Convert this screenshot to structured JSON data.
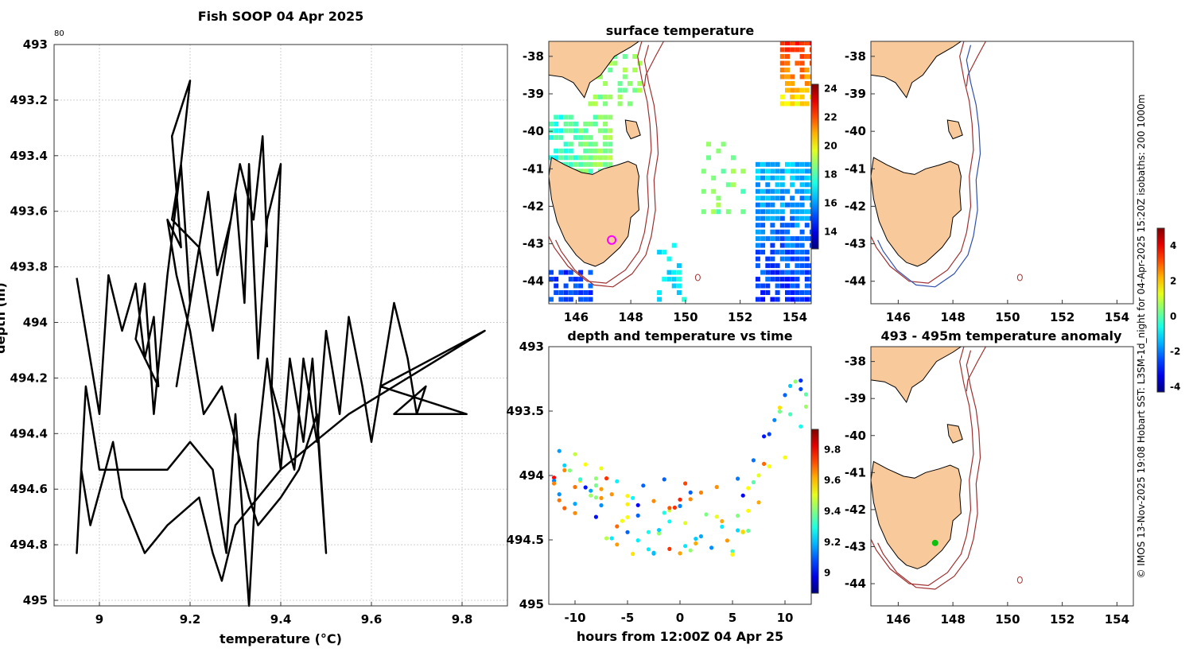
{
  "chart_data": [
    {
      "id": "profile",
      "type": "line",
      "title": "Fish SOOP 04 Apr 2025",
      "top_label": "80",
      "xlabel": "temperature (°C)",
      "ylabel": "depth (m)",
      "xlim": [
        8.9,
        9.9
      ],
      "ylim": [
        493,
        495.02
      ],
      "xticks": [
        9,
        9.2,
        9.4,
        9.6,
        9.8
      ],
      "yticks": [
        493,
        493.2,
        493.4,
        493.6,
        493.8,
        494,
        494.2,
        494.4,
        494.6,
        494.8,
        495
      ],
      "series": [
        {
          "name": "trace",
          "color": "#000000",
          "points": [
            [
              8.95,
              493.84
            ],
            [
              9.0,
              494.33
            ],
            [
              9.02,
              493.83
            ],
            [
              9.05,
              494.03
            ],
            [
              9.08,
              493.86
            ],
            [
              9.1,
              494.13
            ],
            [
              9.12,
              493.98
            ],
            [
              9.13,
              494.23
            ],
            [
              9.08,
              494.06
            ],
            [
              9.1,
              493.86
            ],
            [
              9.12,
              494.33
            ],
            [
              9.15,
              493.83
            ],
            [
              9.18,
              493.43
            ],
            [
              9.2,
              493.93
            ],
            [
              9.17,
              494.23
            ],
            [
              9.22,
              493.73
            ],
            [
              9.25,
              494.03
            ],
            [
              9.27,
              493.83
            ],
            [
              9.3,
              493.53
            ],
            [
              9.32,
              493.93
            ],
            [
              9.33,
              493.43
            ],
            [
              9.35,
              494.13
            ],
            [
              9.37,
              493.63
            ],
            [
              9.4,
              493.43
            ],
            [
              9.38,
              494.23
            ],
            [
              9.43,
              494.53
            ],
            [
              9.45,
              494.13
            ],
            [
              9.48,
              494.43
            ],
            [
              9.5,
              494.03
            ],
            [
              9.53,
              494.33
            ],
            [
              9.55,
              493.98
            ],
            [
              9.58,
              494.23
            ],
            [
              9.6,
              494.43
            ],
            [
              9.63,
              494.13
            ],
            [
              9.65,
              493.93
            ],
            [
              9.68,
              494.13
            ],
            [
              9.7,
              494.33
            ],
            [
              9.72,
              494.23
            ],
            [
              9.65,
              494.33
            ],
            [
              9.81,
              494.33
            ],
            [
              9.62,
              494.23
            ],
            [
              9.85,
              494.03
            ],
            [
              9.55,
              494.33
            ],
            [
              9.4,
              494.53
            ],
            [
              9.3,
              494.73
            ],
            [
              9.27,
              494.93
            ],
            [
              9.25,
              494.83
            ],
            [
              9.22,
              494.63
            ],
            [
              9.15,
              494.73
            ],
            [
              9.1,
              494.83
            ],
            [
              9.05,
              494.63
            ],
            [
              9.03,
              494.43
            ],
            [
              8.98,
              494.73
            ],
            [
              8.96,
              494.53
            ],
            [
              8.95,
              494.83
            ],
            [
              8.97,
              494.23
            ],
            [
              9.0,
              494.53
            ],
            [
              9.15,
              494.53
            ],
            [
              9.2,
              494.43
            ],
            [
              9.25,
              494.53
            ],
            [
              9.28,
              494.83
            ],
            [
              9.3,
              494.33
            ],
            [
              9.33,
              495.02
            ],
            [
              9.35,
              494.43
            ],
            [
              9.37,
              494.13
            ],
            [
              9.4,
              494.53
            ],
            [
              9.42,
              494.13
            ],
            [
              9.45,
              494.43
            ],
            [
              9.47,
              494.13
            ],
            [
              9.5,
              494.83
            ],
            [
              9.48,
              494.33
            ],
            [
              9.44,
              494.53
            ],
            [
              9.4,
              494.63
            ],
            [
              9.35,
              494.73
            ],
            [
              9.33,
              494.63
            ],
            [
              9.3,
              494.43
            ],
            [
              9.27,
              494.23
            ],
            [
              9.23,
              494.33
            ],
            [
              9.2,
              494.03
            ],
            [
              9.17,
              493.83
            ],
            [
              9.15,
              493.63
            ],
            [
              9.18,
              493.73
            ],
            [
              9.16,
              493.33
            ],
            [
              9.2,
              493.13
            ],
            [
              9.18,
              493.43
            ],
            [
              9.16,
              493.63
            ],
            [
              9.22,
              493.73
            ],
            [
              9.24,
              493.53
            ],
            [
              9.26,
              493.83
            ],
            [
              9.29,
              493.63
            ],
            [
              9.31,
              493.43
            ],
            [
              9.34,
              493.63
            ],
            [
              9.36,
              493.33
            ],
            [
              9.37,
              493.73
            ]
          ]
        }
      ]
    },
    {
      "id": "timeseries",
      "type": "scatter",
      "title": "depth and temperature vs time",
      "xlabel": "hours from 12:00Z 04 Apr 25",
      "ylabel": "",
      "xlim": [
        -12.5,
        12.5
      ],
      "ylim": [
        493,
        495
      ],
      "xticks": [
        -10,
        -5,
        0,
        5,
        10
      ],
      "yticks": [
        493,
        493.5,
        494,
        494.5,
        495
      ],
      "colorbar": {
        "clim": [
          8.87,
          9.93
        ],
        "ticks": [
          9,
          9.2,
          9.4,
          9.6,
          9.8
        ]
      }
    },
    {
      "id": "sst-map",
      "type": "heatmap",
      "title": "surface temperature",
      "xlim": [
        145,
        154.6
      ],
      "ylim": [
        -44.6,
        -37.6
      ],
      "xticks": [
        146,
        148,
        150,
        152,
        154
      ],
      "yticks": [
        -38,
        -39,
        -40,
        -41,
        -42,
        -43,
        -44
      ],
      "colorbar": {
        "clim": [
          12.8,
          24.3
        ],
        "ticks": [
          14,
          16,
          18,
          20,
          22,
          24
        ]
      }
    },
    {
      "id": "bathy-map",
      "type": "heatmap",
      "title": "",
      "xlim": [
        145,
        154.6
      ],
      "ylim": [
        -44.6,
        -37.6
      ],
      "xticks": [
        146,
        148,
        150,
        152,
        154
      ],
      "yticks": [
        -38,
        -39,
        -40,
        -41,
        -42,
        -43,
        -44
      ]
    },
    {
      "id": "anomaly-map",
      "type": "heatmap",
      "title": "493 - 495m temperature anomaly",
      "xlim": [
        145,
        154.6
      ],
      "ylim": [
        -44.6,
        -37.6
      ],
      "xticks": [
        146,
        148,
        150,
        152,
        154
      ],
      "yticks": [
        -38,
        -39,
        -40,
        -41,
        -42,
        -43,
        -44
      ],
      "colorbar": {
        "clim": [
          -4.3,
          5.0
        ],
        "ticks": [
          4,
          2,
          0,
          -2,
          -4
        ]
      }
    }
  ],
  "credit": "© IMOS 13-Nov-2025 19:08 Hobart SST: L3SM-1d_night for 04-Apr-2025 15:20Z isobaths: 200 1000m",
  "colors": {
    "land": "#f8c99a",
    "coast": "#000000",
    "isobath_200": "#a03030",
    "isobath_1000": "#3050b0",
    "marker": "#ff00ff"
  }
}
